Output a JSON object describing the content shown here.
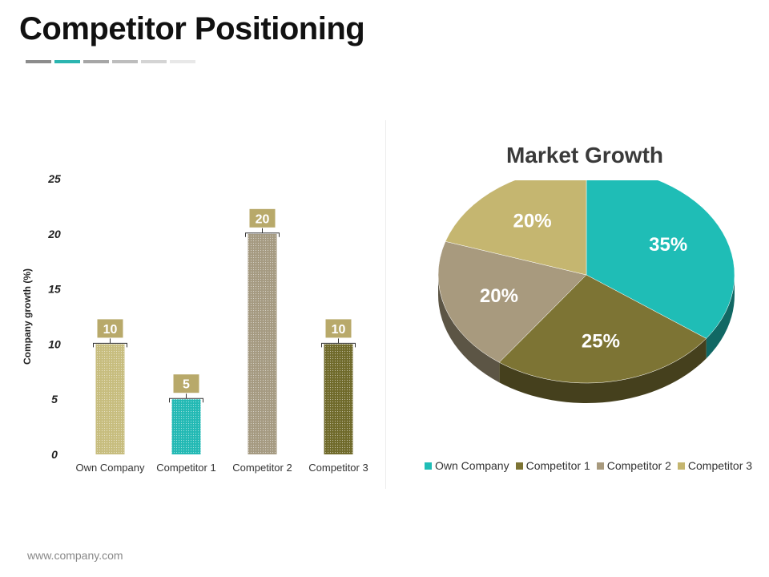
{
  "page": {
    "title": "Competitor Positioning",
    "footer_url": "www.company.com",
    "underline_colors": [
      "#8c8c8c",
      "#2bb5b0",
      "#a6a6a6",
      "#bdbdbd",
      "#d4d4d4",
      "#e8e8e8"
    ]
  },
  "chart_data": [
    {
      "type": "bar",
      "title": "",
      "xlabel": "",
      "ylabel": "Company growth (%)",
      "ylim": [
        0,
        25
      ],
      "yticks": [
        0,
        5,
        10,
        15,
        20,
        25
      ],
      "categories": [
        "Own Company",
        "Competitor 1",
        "Competitor 2",
        "Competitor 3"
      ],
      "values": [
        10,
        5,
        20,
        10
      ],
      "data_labels": [
        "10",
        "5",
        "20",
        "10"
      ],
      "colors": [
        "#c7bd7e",
        "#22b9b4",
        "#a59a81",
        "#6f6a2a"
      ],
      "label_box_color": "#b8a96a",
      "grid": false
    },
    {
      "type": "pie",
      "title": "Market Growth",
      "labels": [
        "Own Company",
        "Competitor 1",
        "Competitor 2",
        "Competitor 3"
      ],
      "values": [
        35,
        25,
        20,
        20
      ],
      "value_labels": [
        "35%",
        "25%",
        "20%",
        "20%"
      ],
      "colors": [
        "#1fbdb6",
        "#7d7434",
        "#a89a7e",
        "#c5b670"
      ],
      "legend_position": "bottom"
    }
  ]
}
